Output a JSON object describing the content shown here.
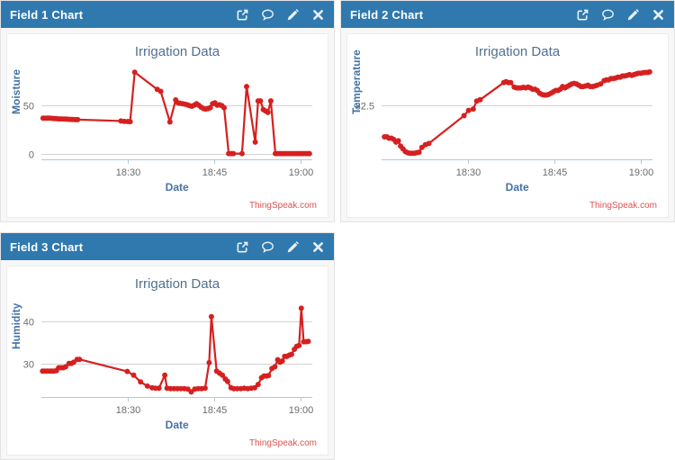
{
  "theme": {
    "header_bg": "#2f79af",
    "header_text": "#ffffff",
    "panel_bg": "#f7f7f7",
    "panel_border": "#e3e3e3",
    "chart_bg": "#ffffff",
    "series_color": "#d62020",
    "grid_color": "#d2d2d2",
    "axis_color": "#a9cbdf",
    "tick_label_color": "#6b6b6b",
    "title_color": "#51708f",
    "axis_title_color": "#4572a7",
    "credits_color": "#d9534f"
  },
  "panels": [
    {
      "header": {
        "title": "Field 1 Chart",
        "icons": [
          "external-link",
          "comment",
          "pencil",
          "close"
        ]
      },
      "chart_data": {
        "type": "line",
        "title": "Irrigation Data",
        "xlabel": "Date",
        "ylabel": "Moisture",
        "credits": "ThingSpeak.com",
        "xlim": [
          15,
          62
        ],
        "ylim": [
          -6,
          88
        ],
        "x_ticks": [
          {
            "v": 30,
            "label": "18:30"
          },
          {
            "v": 45,
            "label": "18:45"
          },
          {
            "v": 60,
            "label": "19:00"
          }
        ],
        "y_ticks": [
          {
            "v": 0,
            "label": "0"
          },
          {
            "v": 50,
            "label": "50"
          }
        ],
        "points": [
          [
            15.3,
            37
          ],
          [
            15.7,
            37
          ],
          [
            16.1,
            37
          ],
          [
            16.5,
            37
          ],
          [
            16.9,
            36.8
          ],
          [
            17.3,
            36.6
          ],
          [
            17.7,
            36.4
          ],
          [
            18.1,
            36.2
          ],
          [
            18.5,
            36.2
          ],
          [
            18.9,
            36
          ],
          [
            19.3,
            36
          ],
          [
            19.7,
            35.8
          ],
          [
            20.1,
            35.7
          ],
          [
            20.5,
            35.6
          ],
          [
            20.9,
            35.5
          ],
          [
            21.3,
            35.5
          ],
          [
            28.8,
            34
          ],
          [
            29.4,
            33.6
          ],
          [
            30,
            33.5
          ],
          [
            30.4,
            33.4
          ],
          [
            31.2,
            85
          ],
          [
            35.1,
            67
          ],
          [
            35.7,
            65
          ],
          [
            37.3,
            33
          ],
          [
            38.3,
            56
          ],
          [
            38.7,
            53
          ],
          [
            39.1,
            52.5
          ],
          [
            39.5,
            52
          ],
          [
            39.9,
            51.5
          ],
          [
            40.3,
            51
          ],
          [
            40.7,
            50
          ],
          [
            41.1,
            49.5
          ],
          [
            41.5,
            50.5
          ],
          [
            41.9,
            52
          ],
          [
            42.3,
            50.5
          ],
          [
            42.7,
            48.5
          ],
          [
            43.1,
            47
          ],
          [
            43.5,
            46.5
          ],
          [
            43.9,
            47
          ],
          [
            44.3,
            48
          ],
          [
            44.7,
            52
          ],
          [
            45.1,
            53
          ],
          [
            45.5,
            50.5
          ],
          [
            45.9,
            51
          ],
          [
            46.3,
            50
          ],
          [
            46.7,
            48
          ],
          [
            47.5,
            0
          ],
          [
            47.9,
            0
          ],
          [
            48.3,
            0
          ],
          [
            49.8,
            0
          ],
          [
            50.6,
            70
          ],
          [
            52.1,
            12
          ],
          [
            52.6,
            55
          ],
          [
            53,
            55
          ],
          [
            53.5,
            46
          ],
          [
            53.9,
            44.5
          ],
          [
            54.3,
            43
          ],
          [
            54.8,
            55
          ],
          [
            55.6,
            0
          ],
          [
            56,
            0
          ],
          [
            56.4,
            0
          ],
          [
            56.8,
            0
          ],
          [
            57.2,
            0
          ],
          [
            57.6,
            0
          ],
          [
            58,
            0
          ],
          [
            58.4,
            0
          ],
          [
            58.8,
            0
          ],
          [
            59.2,
            0
          ],
          [
            59.6,
            0
          ],
          [
            60,
            0
          ],
          [
            60.4,
            0
          ],
          [
            60.8,
            0
          ],
          [
            61.2,
            0
          ],
          [
            61.5,
            0
          ]
        ]
      }
    },
    {
      "header": {
        "title": "Field 2 Chart",
        "icons": [
          "external-link",
          "comment",
          "pencil",
          "close"
        ]
      },
      "chart_data": {
        "type": "line",
        "title": "Irrigation Data",
        "xlabel": "Date",
        "ylabel": "Temperature",
        "credits": "ThingSpeak.com",
        "xlim": [
          15,
          62
        ],
        "ylim": [
          30.45,
          33.85
        ],
        "x_ticks": [
          {
            "v": 30,
            "label": "18:30"
          },
          {
            "v": 45,
            "label": "18:45"
          },
          {
            "v": 60,
            "label": "19:00"
          }
        ],
        "y_ticks": [
          {
            "v": 32.5,
            "label": "32.5"
          }
        ],
        "points": [
          [
            15.5,
            31.3
          ],
          [
            15.9,
            31.3
          ],
          [
            16.3,
            31.25
          ],
          [
            16.7,
            31.25
          ],
          [
            17.1,
            31.2
          ],
          [
            17.5,
            31.1
          ],
          [
            17.9,
            31.15
          ],
          [
            18.3,
            30.95
          ],
          [
            18.7,
            30.85
          ],
          [
            19.1,
            30.75
          ],
          [
            19.5,
            30.7
          ],
          [
            19.9,
            30.68
          ],
          [
            20.3,
            30.68
          ],
          [
            20.7,
            30.68
          ],
          [
            21.1,
            30.7
          ],
          [
            21.5,
            30.72
          ],
          [
            22,
            30.9
          ],
          [
            22.6,
            31
          ],
          [
            23.2,
            31.05
          ],
          [
            29.3,
            32.1
          ],
          [
            30.1,
            32.3
          ],
          [
            30.9,
            32.35
          ],
          [
            31.5,
            32.65
          ],
          [
            32.1,
            32.7
          ],
          [
            36.2,
            33.35
          ],
          [
            36.6,
            33.38
          ],
          [
            37,
            33.35
          ],
          [
            37.4,
            33.35
          ],
          [
            38,
            33.18
          ],
          [
            38.4,
            33.15
          ],
          [
            38.8,
            33.15
          ],
          [
            39.2,
            33.15
          ],
          [
            39.6,
            33.17
          ],
          [
            40,
            33.15
          ],
          [
            40.4,
            33.18
          ],
          [
            40.8,
            33.15
          ],
          [
            41.2,
            33.1
          ],
          [
            41.6,
            33.1
          ],
          [
            42,
            33.05
          ],
          [
            42.4,
            32.95
          ],
          [
            42.8,
            32.9
          ],
          [
            43.2,
            32.88
          ],
          [
            43.6,
            32.88
          ],
          [
            44,
            32.9
          ],
          [
            44.4,
            32.95
          ],
          [
            44.8,
            33
          ],
          [
            45.2,
            33.05
          ],
          [
            45.6,
            33.05
          ],
          [
            46,
            33.1
          ],
          [
            46.4,
            33.2
          ],
          [
            46.8,
            33.15
          ],
          [
            47.2,
            33.2
          ],
          [
            47.6,
            33.25
          ],
          [
            48,
            33.3
          ],
          [
            48.4,
            33.32
          ],
          [
            48.8,
            33.3
          ],
          [
            49.2,
            33.25
          ],
          [
            49.6,
            33.2
          ],
          [
            50,
            33.2
          ],
          [
            50.4,
            33.22
          ],
          [
            50.8,
            33.25
          ],
          [
            51.2,
            33.2
          ],
          [
            51.6,
            33.2
          ],
          [
            52,
            33.22
          ],
          [
            52.4,
            33.25
          ],
          [
            53,
            33.3
          ],
          [
            53.6,
            33.42
          ],
          [
            54,
            33.45
          ],
          [
            54.4,
            33.45
          ],
          [
            54.8,
            33.5
          ],
          [
            55.2,
            33.5
          ],
          [
            55.6,
            33.52
          ],
          [
            56,
            33.55
          ],
          [
            56.4,
            33.55
          ],
          [
            56.8,
            33.6
          ],
          [
            57.2,
            33.6
          ],
          [
            57.6,
            33.62
          ],
          [
            58,
            33.65
          ],
          [
            58.4,
            33.62
          ],
          [
            58.8,
            33.65
          ],
          [
            59.2,
            33.68
          ],
          [
            59.6,
            33.7
          ],
          [
            60,
            33.7
          ],
          [
            60.4,
            33.72
          ],
          [
            60.8,
            33.73
          ],
          [
            61.2,
            33.73
          ],
          [
            61.5,
            33.75
          ]
        ]
      }
    },
    {
      "header": {
        "title": "Field 3 Chart",
        "icons": [
          "external-link",
          "comment",
          "pencil",
          "close"
        ]
      },
      "chart_data": {
        "type": "line",
        "title": "Irrigation Data",
        "xlabel": "Date",
        "ylabel": "Humidity",
        "credits": "ThingSpeak.com",
        "xlim": [
          15,
          62
        ],
        "ylim": [
          22,
          44.8
        ],
        "x_ticks": [
          {
            "v": 30,
            "label": "18:30"
          },
          {
            "v": 45,
            "label": "18:45"
          },
          {
            "v": 60,
            "label": "19:00"
          }
        ],
        "y_ticks": [
          {
            "v": 30,
            "label": "30"
          },
          {
            "v": 40,
            "label": "40"
          }
        ],
        "points": [
          [
            15.2,
            28.2
          ],
          [
            15.6,
            28.2
          ],
          [
            16,
            28.2
          ],
          [
            16.4,
            28.2
          ],
          [
            16.8,
            28.2
          ],
          [
            17.2,
            28.2
          ],
          [
            17.6,
            28.3
          ],
          [
            18,
            29
          ],
          [
            18.4,
            29
          ],
          [
            18.8,
            29
          ],
          [
            19.2,
            29.2
          ],
          [
            19.8,
            30
          ],
          [
            20.2,
            30
          ],
          [
            20.6,
            30.3
          ],
          [
            21.2,
            31
          ],
          [
            21.6,
            31
          ],
          [
            29.9,
            28.1
          ],
          [
            31,
            27.2
          ],
          [
            32.2,
            25.6
          ],
          [
            33.4,
            24.6
          ],
          [
            34.2,
            24.2
          ],
          [
            34.8,
            24.1
          ],
          [
            35.4,
            24.1
          ],
          [
            36.4,
            27.2
          ],
          [
            36.8,
            24.1
          ],
          [
            37.4,
            24
          ],
          [
            38,
            24
          ],
          [
            38.6,
            24
          ],
          [
            39.2,
            24
          ],
          [
            39.8,
            24
          ],
          [
            40.4,
            23.9
          ],
          [
            41,
            23.2
          ],
          [
            41.6,
            23.9
          ],
          [
            42.2,
            24
          ],
          [
            42.8,
            24
          ],
          [
            43.4,
            24.1
          ],
          [
            44.1,
            30.2
          ],
          [
            44.5,
            41.2
          ],
          [
            45.4,
            28.2
          ],
          [
            45.9,
            27.7
          ],
          [
            46.4,
            27.2
          ],
          [
            46.9,
            26.3
          ],
          [
            47.3,
            25.7
          ],
          [
            47.9,
            24.2
          ],
          [
            48.4,
            24
          ],
          [
            49,
            24
          ],
          [
            49.6,
            24
          ],
          [
            50.2,
            24.1
          ],
          [
            50.8,
            24
          ],
          [
            51.4,
            24.1
          ],
          [
            52,
            24.2
          ],
          [
            52.6,
            25
          ],
          [
            53.2,
            26.6
          ],
          [
            53.6,
            27
          ],
          [
            54,
            27
          ],
          [
            54.4,
            27.1
          ],
          [
            55,
            28.8
          ],
          [
            55.5,
            29.2
          ],
          [
            56,
            30.9
          ],
          [
            56.4,
            30.3
          ],
          [
            56.8,
            30.6
          ],
          [
            57.2,
            31.7
          ],
          [
            57.6,
            31.7
          ],
          [
            58,
            32
          ],
          [
            58.4,
            32.2
          ],
          [
            58.9,
            33.4
          ],
          [
            59.3,
            34.1
          ],
          [
            59.7,
            34.3
          ],
          [
            60.1,
            43.2
          ],
          [
            60.5,
            35.2
          ],
          [
            60.9,
            35.2
          ],
          [
            61.3,
            35.3
          ]
        ]
      }
    }
  ]
}
